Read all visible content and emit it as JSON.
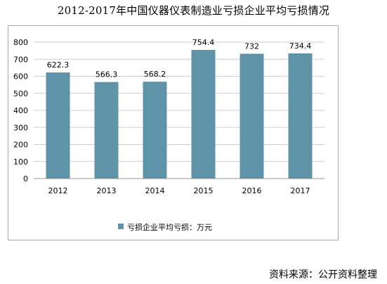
{
  "title": "2012-2017年中国仪器仪表制造业亏损企业平均亏损情况",
  "source": "资料来源：公开资料整理",
  "colors": {
    "bar": "#5f93a8",
    "grid": "#cfcfcf",
    "axis": "#999999",
    "frame": "#a8a8a8"
  },
  "chart_data": {
    "type": "bar",
    "categories": [
      "2012",
      "2013",
      "2014",
      "2015",
      "2016",
      "2017"
    ],
    "series": [
      {
        "name": "亏损企业平均亏损：万元",
        "values": [
          622.3,
          566.3,
          568.2,
          754.4,
          732,
          734.4
        ]
      }
    ],
    "value_labels": [
      "622.3",
      "566.3",
      "568.2",
      "754.4",
      "732",
      "734.4"
    ],
    "ylim": [
      0,
      800
    ],
    "yticks": [
      0,
      100,
      200,
      300,
      400,
      500,
      600,
      700,
      800
    ],
    "grid": true,
    "legend_position": "bottom"
  }
}
